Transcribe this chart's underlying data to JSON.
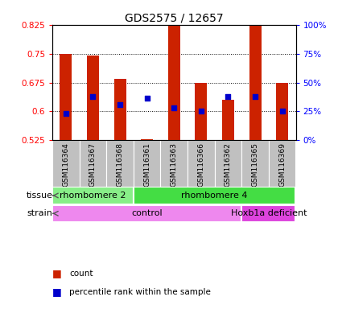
{
  "title": "GDS2575 / 12657",
  "samples": [
    "GSM116364",
    "GSM116367",
    "GSM116368",
    "GSM116361",
    "GSM116363",
    "GSM116366",
    "GSM116362",
    "GSM116365",
    "GSM116369"
  ],
  "bar_bottoms": [
    0.525,
    0.525,
    0.525,
    0.525,
    0.525,
    0.525,
    0.525,
    0.525,
    0.525
  ],
  "bar_tops": [
    0.75,
    0.745,
    0.685,
    0.528,
    0.825,
    0.675,
    0.63,
    0.84,
    0.675
  ],
  "percentile_values": [
    0.594,
    0.638,
    0.617,
    0.635,
    0.609,
    0.601,
    0.638,
    0.638,
    0.601
  ],
  "ylim_left": [
    0.525,
    0.825
  ],
  "ylim_right": [
    0,
    100
  ],
  "yticks_left": [
    0.525,
    0.6,
    0.675,
    0.75,
    0.825
  ],
  "ytick_labels_left": [
    "0.525",
    "0.6",
    "0.675",
    "0.75",
    "0.825"
  ],
  "yticks_right": [
    0,
    25,
    50,
    75,
    100
  ],
  "ytick_labels_right": [
    "0%",
    "25%",
    "50%",
    "75%",
    "100%"
  ],
  "bar_color": "#cc2200",
  "dot_color": "#0000cc",
  "tissue_groups": [
    {
      "label": "rhombomere 2",
      "start": 0,
      "end": 3,
      "color": "#88ee88"
    },
    {
      "label": "rhombomere 4",
      "start": 3,
      "end": 9,
      "color": "#44dd44"
    }
  ],
  "strain_groups": [
    {
      "label": "control",
      "start": 0,
      "end": 7,
      "color": "#ee88ee"
    },
    {
      "label": "Hoxb1a deficient",
      "start": 7,
      "end": 9,
      "color": "#dd44dd"
    }
  ],
  "legend_items": [
    {
      "color": "#cc2200",
      "label": "count"
    },
    {
      "color": "#0000cc",
      "label": "percentile rank within the sample"
    }
  ],
  "bg_color": "#ffffff",
  "tick_area_color": "#c0c0c0"
}
